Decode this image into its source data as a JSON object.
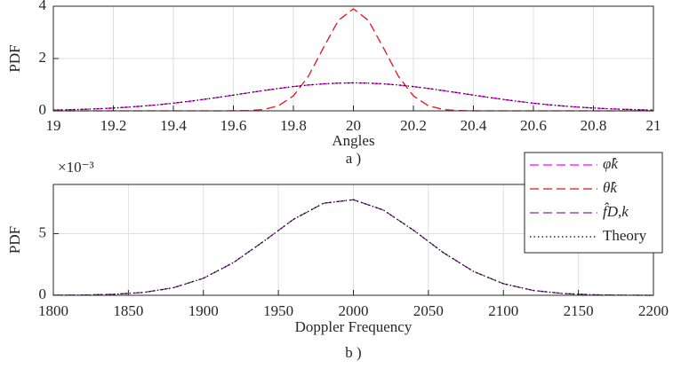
{
  "chart_data": [
    {
      "type": "line",
      "xlabel": "Angles",
      "ylabel": "PDF",
      "caption": "a )",
      "x": [
        19,
        19.05,
        19.1,
        19.15,
        19.2,
        19.25,
        19.3,
        19.35,
        19.4,
        19.45,
        19.5,
        19.55,
        19.6,
        19.65,
        19.7,
        19.75,
        19.8,
        19.85,
        19.9,
        19.95,
        20,
        20.05,
        20.1,
        20.15,
        20.2,
        20.25,
        20.3,
        20.35,
        20.4,
        20.45,
        20.5,
        20.55,
        20.6,
        20.65,
        20.7,
        20.75,
        20.8,
        20.85,
        20.9,
        20.95,
        21
      ],
      "series": [
        {
          "name": "φ̂k",
          "color": "#ff00ff",
          "dash": "10,5",
          "values": [
            0.029,
            0.042,
            0.058,
            0.08,
            0.107,
            0.142,
            0.184,
            0.234,
            0.293,
            0.361,
            0.436,
            0.517,
            0.602,
            0.689,
            0.774,
            0.855,
            0.927,
            0.987,
            1.032,
            1.06,
            1.07,
            1.06,
            1.032,
            0.987,
            0.927,
            0.855,
            0.774,
            0.689,
            0.602,
            0.517,
            0.436,
            0.361,
            0.293,
            0.234,
            0.184,
            0.142,
            0.107,
            0.08,
            0.058,
            0.042,
            0.029
          ]
        },
        {
          "name": "θ̂k",
          "color": "#e0141e",
          "dash": "10,5",
          "values": [
            0,
            0,
            0,
            0,
            0,
            0,
            0,
            0,
            0,
            0,
            0,
            0,
            0.002,
            0.011,
            0.051,
            0.193,
            0.57,
            1.322,
            2.41,
            3.458,
            3.9,
            3.458,
            2.41,
            1.322,
            0.57,
            0.193,
            0.051,
            0.011,
            0.002,
            0,
            0,
            0,
            0,
            0,
            0,
            0,
            0,
            0,
            0,
            0,
            0
          ]
        },
        {
          "name": "Theory",
          "color": "#000000",
          "dash": "1.5,3",
          "values": [
            0.029,
            0.042,
            0.058,
            0.08,
            0.107,
            0.142,
            0.184,
            0.234,
            0.293,
            0.361,
            0.436,
            0.517,
            0.602,
            0.689,
            0.774,
            0.855,
            0.927,
            0.987,
            1.032,
            1.06,
            1.07,
            1.06,
            1.032,
            0.987,
            0.927,
            0.855,
            0.774,
            0.689,
            0.602,
            0.517,
            0.436,
            0.361,
            0.293,
            0.234,
            0.184,
            0.142,
            0.107,
            0.08,
            0.058,
            0.042,
            0.029
          ]
        }
      ],
      "xlim": [
        19,
        21
      ],
      "xticks": [
        19,
        19.2,
        19.4,
        19.6,
        19.8,
        20,
        20.2,
        20.4,
        20.6,
        20.8,
        21
      ],
      "ylim": [
        0,
        4
      ],
      "yticks": [
        0,
        2,
        4
      ],
      "grid": true
    },
    {
      "type": "line",
      "xlabel": "Doppler Frequency",
      "ylabel": "PDF",
      "caption": "b )",
      "y_multiplier": "×10⁻³",
      "x": [
        1800,
        1820,
        1840,
        1860,
        1880,
        1900,
        1920,
        1940,
        1960,
        1980,
        2000,
        2020,
        2040,
        2060,
        2080,
        2100,
        2120,
        2140,
        2160,
        2180,
        2200
      ],
      "series": [
        {
          "name": "f̂D,k",
          "color": "#7e2f8e",
          "dash": "10,5",
          "values": [
            1e-05,
            2e-05,
            8e-05,
            0.00023,
            0.00061,
            0.00138,
            0.00265,
            0.00436,
            0.00616,
            0.00747,
            0.00776,
            0.00692,
            0.00529,
            0.00346,
            0.00194,
            0.00094,
            0.00039,
            0.00014,
            4e-05,
            1e-05,
            0
          ]
        },
        {
          "name": "Theory",
          "color": "#000000",
          "dash": "1.5,3",
          "values": [
            1e-05,
            2e-05,
            8e-05,
            0.00023,
            0.00061,
            0.00138,
            0.00265,
            0.00436,
            0.00616,
            0.00747,
            0.00776,
            0.00692,
            0.00529,
            0.00346,
            0.00194,
            0.00094,
            0.00039,
            0.00014,
            4e-05,
            1e-05,
            0
          ]
        }
      ],
      "xlim": [
        1800,
        2200
      ],
      "xticks": [
        1800,
        1850,
        1900,
        1950,
        2000,
        2050,
        2100,
        2150,
        2200
      ],
      "ylim": [
        0,
        0.009
      ],
      "yticks": [
        0,
        {
          "value": 0.005,
          "label": "5"
        }
      ],
      "grid": true
    }
  ]
}
